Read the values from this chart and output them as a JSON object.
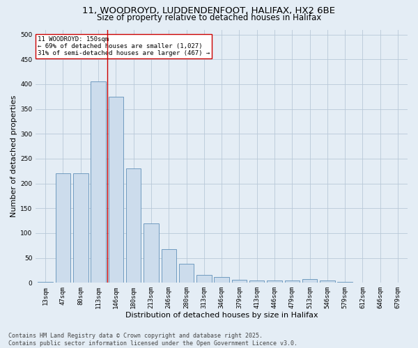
{
  "title_line1": "11, WOODROYD, LUDDENDENFOOT, HALIFAX, HX2 6BE",
  "title_line2": "Size of property relative to detached houses in Halifax",
  "xlabel": "Distribution of detached houses by size in Halifax",
  "ylabel": "Number of detached properties",
  "bar_labels": [
    "13sqm",
    "47sqm",
    "80sqm",
    "113sqm",
    "146sqm",
    "180sqm",
    "213sqm",
    "246sqm",
    "280sqm",
    "313sqm",
    "346sqm",
    "379sqm",
    "413sqm",
    "446sqm",
    "479sqm",
    "513sqm",
    "546sqm",
    "579sqm",
    "612sqm",
    "646sqm",
    "679sqm"
  ],
  "bar_values": [
    2,
    220,
    220,
    405,
    375,
    230,
    120,
    68,
    38,
    16,
    12,
    6,
    4,
    5,
    5,
    7,
    5,
    2,
    1,
    1,
    1
  ],
  "bar_color": "#ccdcec",
  "bar_edge_color": "#6090b8",
  "bar_edge_width": 0.6,
  "grid_color": "#b8c8d8",
  "background_color": "#e4edf5",
  "vline_x": 3.5,
  "vline_color": "#cc0000",
  "annotation_title": "11 WOODROYD: 150sqm",
  "annotation_line1": "← 69% of detached houses are smaller (1,027)",
  "annotation_line2": "31% of semi-detached houses are larger (467) →",
  "annotation_box_color": "#ffffff",
  "annotation_box_edge": "#cc0000",
  "ylim": [
    0,
    510
  ],
  "yticks": [
    0,
    50,
    100,
    150,
    200,
    250,
    300,
    350,
    400,
    450,
    500
  ],
  "footer_line1": "Contains HM Land Registry data © Crown copyright and database right 2025.",
  "footer_line2": "Contains public sector information licensed under the Open Government Licence v3.0.",
  "title_fontsize": 9.5,
  "subtitle_fontsize": 8.5,
  "axis_label_fontsize": 8,
  "tick_fontsize": 6.5,
  "annotation_fontsize": 6.5,
  "footer_fontsize": 6.0
}
